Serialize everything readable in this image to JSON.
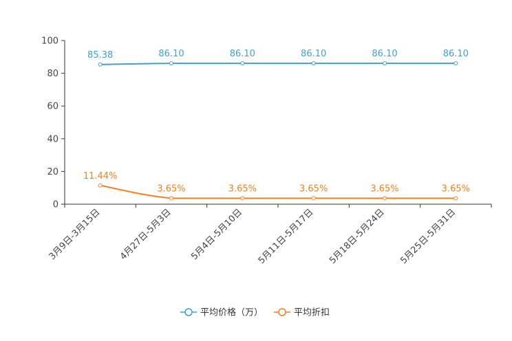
{
  "chart_data": {
    "type": "line",
    "title": "",
    "xlabel": "",
    "ylabel": "",
    "ylim": [
      0,
      100
    ],
    "yticks": [
      0,
      20,
      40,
      60,
      80,
      100
    ],
    "grid": false,
    "legend_position": "bottom-center",
    "categories": [
      "3月9日-3月15日",
      "4月27日-5月3日",
      "5月4日-5月10日",
      "5月11日-5月17日",
      "5月18日-5月24日",
      "5月25日-5月31日"
    ],
    "series": [
      {
        "name": "平均价格（万）",
        "color": "#3fa0d0",
        "values": [
          85.38,
          86.1,
          86.1,
          86.1,
          86.1,
          86.1
        ],
        "labels": [
          "85.38",
          "86.10",
          "86.10",
          "86.10",
          "86.10",
          "86.10"
        ]
      },
      {
        "name": "平均折扣",
        "color": "#f57f1f",
        "values": [
          11.44,
          3.65,
          3.65,
          3.65,
          3.65,
          3.65
        ],
        "labels": [
          "11.44%",
          "3.65%",
          "3.65%",
          "3.65%",
          "3.65%",
          "3.65%"
        ]
      }
    ]
  }
}
